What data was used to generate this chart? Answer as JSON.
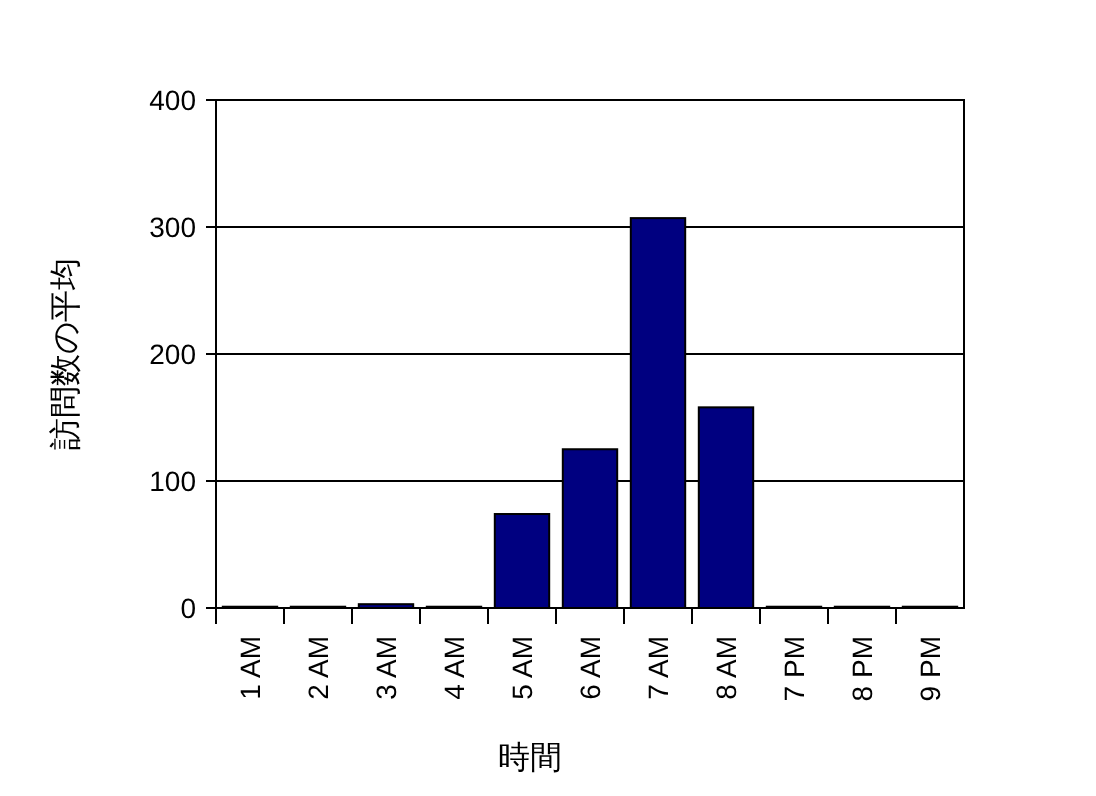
{
  "chart_data": {
    "type": "bar",
    "xlabel": "時間",
    "ylabel": "訪問数の平均",
    "categories": [
      "1 AM",
      "2 AM",
      "3 AM",
      "4 AM",
      "5 AM",
      "6 AM",
      "7 AM",
      "8 AM",
      "7 PM",
      "8 PM",
      "9 PM"
    ],
    "values": [
      1,
      1,
      3,
      1,
      74,
      125,
      307,
      158,
      1,
      1,
      1
    ],
    "color": "#000080",
    "ylim": [
      0,
      400
    ],
    "yticks": [
      0,
      100,
      200,
      300,
      400
    ],
    "grid": "y"
  }
}
